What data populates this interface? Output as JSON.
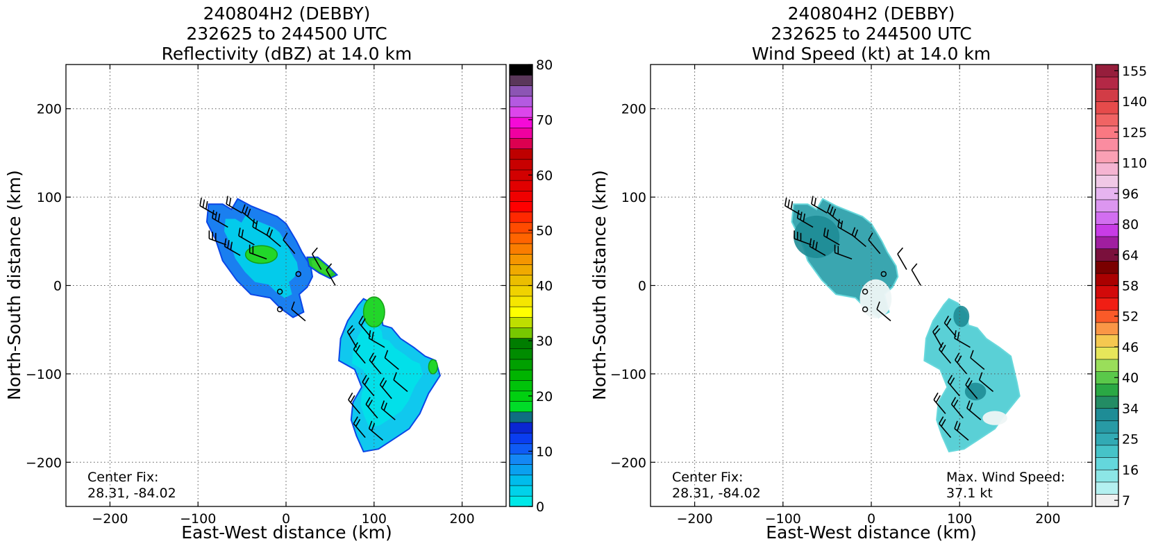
{
  "chart_data": [
    {
      "type": "heatmap",
      "title_lines": [
        "240804H2 (DEBBY)",
        "232625 to 244500 UTC",
        "Reflectivity (dBZ) at 14.0 km"
      ],
      "xlabel": "East-West distance (km)",
      "ylabel": "North-South distance (km)",
      "xlim": [
        -250,
        250
      ],
      "ylim": [
        -250,
        250
      ],
      "xticks": [
        -200,
        -100,
        0,
        100,
        200
      ],
      "yticks": [
        -200,
        -100,
        0,
        100,
        200
      ],
      "xtick_labels": [
        "−200",
        "−100",
        "0",
        "100",
        "200"
      ],
      "ytick_labels": [
        "−200",
        "−100",
        "0",
        "100",
        "200"
      ],
      "grid": true,
      "annotation_left": [
        "Center Fix:",
        "28.31, -84.02"
      ],
      "colorbar": {
        "vmin": 0,
        "vmax": 80,
        "ticks": [
          0,
          10,
          20,
          30,
          40,
          50,
          60,
          70,
          80
        ],
        "colors": [
          "#00e8e8",
          "#00d2ea",
          "#00bcec",
          "#0aa0f0",
          "#1487f5",
          "#0f5bf5",
          "#0a3df0",
          "#0a26d2",
          "#0f6e82",
          "#00dc28",
          "#00d010",
          "#00c30a",
          "#00b400",
          "#00a000",
          "#008c00",
          "#007d00",
          "#78c800",
          "#bede00",
          "#ffff00",
          "#f5e600",
          "#f0d200",
          "#ebbe00",
          "#f0aa00",
          "#f59600",
          "#fa7d00",
          "#ff6400",
          "#ff4b00",
          "#ff2800",
          "#ff0000",
          "#f00000",
          "#e10000",
          "#d20000",
          "#c80000",
          "#be0000",
          "#dc0050",
          "#f000a0",
          "#f50ad7",
          "#dc46eb",
          "#b45ae1",
          "#8c55b4",
          "#5a375a",
          "#000000"
        ]
      },
      "regions": [
        {
          "name": "northern-band",
          "points": [
            [
              -88,
              92
            ],
            [
              -72,
              92
            ],
            [
              -62,
              86
            ],
            [
              -55,
              98
            ],
            [
              -40,
              90
            ],
            [
              -20,
              82
            ],
            [
              -10,
              78
            ],
            [
              0,
              70
            ],
            [
              12,
              50
            ],
            [
              18,
              38
            ],
            [
              28,
              22
            ],
            [
              30,
              10
            ],
            [
              24,
              -2
            ],
            [
              15,
              -10
            ],
            [
              20,
              -30
            ],
            [
              8,
              -36
            ],
            [
              -6,
              -26
            ],
            [
              -18,
              -14
            ],
            [
              -40,
              -10
            ],
            [
              -56,
              6
            ],
            [
              -72,
              28
            ],
            [
              -80,
              52
            ],
            [
              -90,
              72
            ]
          ]
        },
        {
          "name": "northern-fragment",
          "points": [
            [
              24,
              32
            ],
            [
              36,
              32
            ],
            [
              48,
              22
            ],
            [
              58,
              12
            ],
            [
              50,
              8
            ],
            [
              38,
              14
            ],
            [
              26,
              22
            ]
          ]
        },
        {
          "name": "southern-band",
          "points": [
            [
              88,
              -15
            ],
            [
              98,
              -20
            ],
            [
              108,
              -32
            ],
            [
              110,
              -45
            ],
            [
              120,
              -48
            ],
            [
              130,
              -60
            ],
            [
              145,
              -70
            ],
            [
              158,
              -80
            ],
            [
              170,
              -85
            ],
            [
              175,
              -102
            ],
            [
              162,
              -122
            ],
            [
              152,
              -145
            ],
            [
              140,
              -162
            ],
            [
              125,
              -172
            ],
            [
              105,
              -185
            ],
            [
              88,
              -188
            ],
            [
              80,
              -170
            ],
            [
              74,
              -152
            ],
            [
              76,
              -132
            ],
            [
              86,
              -115
            ],
            [
              78,
              -95
            ],
            [
              60,
              -85
            ],
            [
              62,
              -60
            ],
            [
              70,
              -40
            ],
            [
              82,
              -22
            ]
          ]
        }
      ],
      "highlight_color": "#22d62a",
      "highlights": [
        {
          "x": -28,
          "y": 35,
          "rx": 18,
          "ry": 10
        },
        {
          "x": 100,
          "y": -30,
          "rx": 12,
          "ry": 17
        },
        {
          "x": 167,
          "y": -92,
          "rx": 5,
          "ry": 8
        }
      ]
    },
    {
      "type": "heatmap",
      "title_lines": [
        "240804H2 (DEBBY)",
        "232625 to 244500 UTC",
        "Wind Speed (kt) at 14.0 km"
      ],
      "xlabel": "East-West distance (km)",
      "ylabel": "North-South distance (km)",
      "xlim": [
        -250,
        250
      ],
      "ylim": [
        -250,
        250
      ],
      "xticks": [
        -200,
        -100,
        0,
        100,
        200
      ],
      "yticks": [
        -200,
        -100,
        0,
        100,
        200
      ],
      "xtick_labels": [
        "−200",
        "−100",
        "0",
        "100",
        "200"
      ],
      "ytick_labels": [
        "−200",
        "−100",
        "0",
        "100",
        "200"
      ],
      "grid": true,
      "annotation_left": [
        "Center Fix:",
        "28.31, -84.02"
      ],
      "annotation_right": [
        "Max. Wind Speed:",
        "37.1 kt"
      ],
      "colorbar": {
        "tick_labels": [
          "7",
          "16",
          "25",
          "34",
          "40",
          "46",
          "52",
          "58",
          "64",
          "80",
          "96",
          "110",
          "125",
          "140",
          "155"
        ],
        "colors": [
          "#f0f0f0",
          "#b4f0f0",
          "#8ce6e6",
          "#64d7dc",
          "#46c3c8",
          "#32aab4",
          "#289aa5",
          "#1e8c96",
          "#238c64",
          "#2aa844",
          "#5ac84a",
          "#9ade5a",
          "#e6e65a",
          "#f5c850",
          "#fa9646",
          "#fa5a28",
          "#f01e14",
          "#d20a0a",
          "#aa0000",
          "#7a0000",
          "#7a103c",
          "#a01ea0",
          "#c83ce6",
          "#d26ef0",
          "#dc96f0",
          "#e6b4f0",
          "#f0c8e6",
          "#f5b4d2",
          "#faa0b4",
          "#fa8ca0",
          "#fa7882",
          "#f06464",
          "#e64b4b",
          "#d23c46",
          "#b42846",
          "#961e3c"
        ]
      },
      "regions": [
        {
          "name": "northern-band",
          "points": [
            [
              -88,
              92
            ],
            [
              -72,
              92
            ],
            [
              -62,
              86
            ],
            [
              -55,
              98
            ],
            [
              -40,
              90
            ],
            [
              -20,
              82
            ],
            [
              -10,
              78
            ],
            [
              0,
              70
            ],
            [
              12,
              50
            ],
            [
              18,
              38
            ],
            [
              28,
              22
            ],
            [
              30,
              10
            ],
            [
              24,
              -2
            ],
            [
              15,
              -10
            ],
            [
              20,
              -30
            ],
            [
              8,
              -36
            ],
            [
              -6,
              -26
            ],
            [
              -18,
              -14
            ],
            [
              -40,
              -10
            ],
            [
              -56,
              6
            ],
            [
              -72,
              28
            ],
            [
              -80,
              52
            ],
            [
              -90,
              72
            ]
          ]
        },
        {
          "name": "southern-band",
          "points": [
            [
              88,
              -15
            ],
            [
              98,
              -20
            ],
            [
              108,
              -32
            ],
            [
              110,
              -45
            ],
            [
              120,
              -48
            ],
            [
              130,
              -60
            ],
            [
              145,
              -70
            ],
            [
              158,
              -80
            ],
            [
              165,
              -110
            ],
            [
              168,
              -125
            ],
            [
              152,
              -145
            ],
            [
              140,
              -162
            ],
            [
              125,
              -172
            ],
            [
              105,
              -185
            ],
            [
              88,
              -188
            ],
            [
              80,
              -170
            ],
            [
              74,
              -152
            ],
            [
              76,
              -132
            ],
            [
              86,
              -115
            ],
            [
              78,
              -95
            ],
            [
              60,
              -85
            ],
            [
              62,
              -60
            ],
            [
              70,
              -40
            ],
            [
              82,
              -22
            ]
          ]
        }
      ],
      "dark_patches": [
        {
          "x": -62,
          "y": 55,
          "rx": 26,
          "ry": 24
        },
        {
          "x": 102,
          "y": -35,
          "rx": 9,
          "ry": 12
        },
        {
          "x": 118,
          "y": -120,
          "rx": 12,
          "ry": 10
        }
      ],
      "light_patches": [
        {
          "x": 5,
          "y": -15,
          "rx": 18,
          "ry": 22
        },
        {
          "x": 140,
          "y": -150,
          "rx": 14,
          "ry": 8
        }
      ]
    }
  ],
  "wind_barbs": [
    {
      "x": -80,
      "y": 80,
      "d": 300,
      "f": 3
    },
    {
      "x": -66,
      "y": 66,
      "d": 300,
      "f": 3
    },
    {
      "x": -50,
      "y": 82,
      "d": 300,
      "f": 2
    },
    {
      "x": -34,
      "y": 70,
      "d": 310,
      "f": 3
    },
    {
      "x": -20,
      "y": 56,
      "d": 300,
      "f": 2
    },
    {
      "x": -68,
      "y": 46,
      "d": 290,
      "f": 3
    },
    {
      "x": -52,
      "y": 34,
      "d": 300,
      "f": 3
    },
    {
      "x": -36,
      "y": 46,
      "d": 300,
      "f": 2
    },
    {
      "x": -22,
      "y": 30,
      "d": 290,
      "f": 2
    },
    {
      "x": -6,
      "y": 44,
      "d": 310,
      "f": 2
    },
    {
      "x": 10,
      "y": 36,
      "d": 320,
      "f": 1
    },
    {
      "x": 40,
      "y": 18,
      "d": 330,
      "f": 1
    },
    {
      "x": 56,
      "y": 0,
      "d": 330,
      "f": 1
    },
    {
      "x": 22,
      "y": -40,
      "d": 310,
      "f": 1
    },
    {
      "x": 80,
      "y": -70,
      "d": 330,
      "f": 2
    },
    {
      "x": 96,
      "y": -58,
      "d": 320,
      "f": 2
    },
    {
      "x": 112,
      "y": -70,
      "d": 300,
      "f": 2
    },
    {
      "x": 90,
      "y": -88,
      "d": 320,
      "f": 2
    },
    {
      "x": 108,
      "y": -100,
      "d": 320,
      "f": 2
    },
    {
      "x": 128,
      "y": -95,
      "d": 310,
      "f": 1
    },
    {
      "x": 100,
      "y": -125,
      "d": 320,
      "f": 2
    },
    {
      "x": 120,
      "y": -128,
      "d": 320,
      "f": 2
    },
    {
      "x": 138,
      "y": -120,
      "d": 310,
      "f": 1
    },
    {
      "x": 84,
      "y": -145,
      "d": 320,
      "f": 2
    },
    {
      "x": 104,
      "y": -150,
      "d": 320,
      "f": 2
    },
    {
      "x": 124,
      "y": -152,
      "d": 310,
      "f": 2
    },
    {
      "x": 90,
      "y": -172,
      "d": 320,
      "f": 2
    },
    {
      "x": 110,
      "y": -175,
      "d": 310,
      "f": 2
    }
  ],
  "calm_points": [
    {
      "x": 14,
      "y": 13
    },
    {
      "x": -7,
      "y": -7
    },
    {
      "x": -7,
      "y": -27
    }
  ]
}
